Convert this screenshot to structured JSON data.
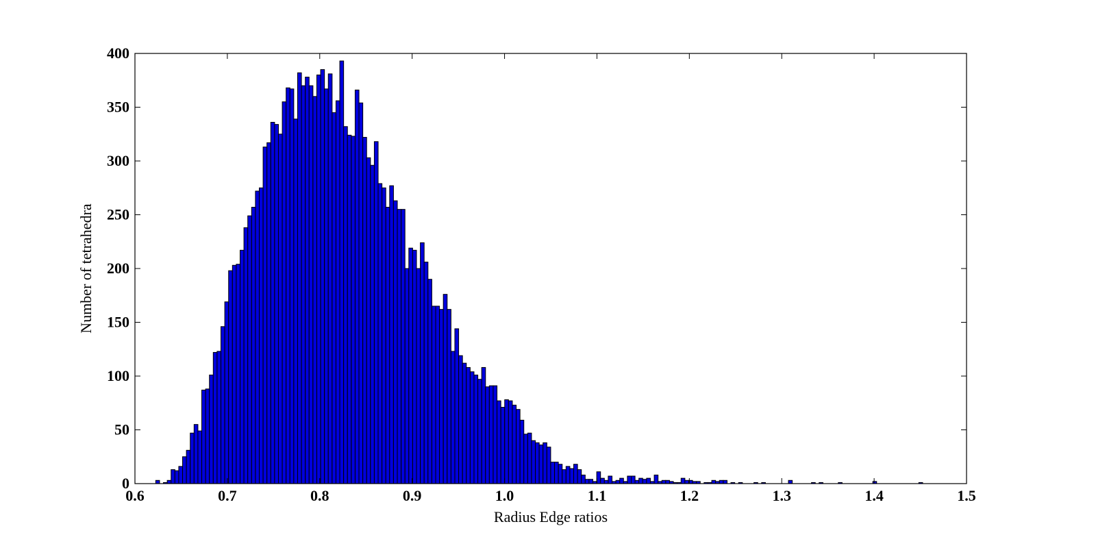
{
  "chart_data": {
    "type": "histogram",
    "x_label": "Radius Edge ratios",
    "y_label": "Number of tetrahedra",
    "color": "#0000dd",
    "edge_color": "#000000",
    "bins": [
      0.6225,
      0.62665,
      0.6308,
      0.63495,
      0.6391,
      0.64325,
      0.6474,
      0.65155,
      0.6557,
      0.65985,
      0.664,
      0.66815,
      0.6723,
      0.67645,
      0.6806,
      0.68475,
      0.6889,
      0.69305,
      0.6972,
      0.70135,
      0.7055,
      0.70965,
      0.7138,
      0.71795,
      0.7221,
      0.72625,
      0.7304,
      0.73455,
      0.7387,
      0.74285,
      0.747,
      0.75115,
      0.7553,
      0.75945,
      0.7636,
      0.76775,
      0.7719,
      0.77605,
      0.7802,
      0.78435,
      0.7885,
      0.79265,
      0.7968,
      0.80095,
      0.8051,
      0.80925,
      0.8134,
      0.81755,
      0.8217,
      0.82585,
      0.83,
      0.83415,
      0.8383,
      0.84245,
      0.8466,
      0.85075,
      0.8549,
      0.85905,
      0.8632,
      0.86735,
      0.8715,
      0.87565,
      0.8798,
      0.88395,
      0.8881,
      0.89225,
      0.8964,
      0.90055,
      0.9047,
      0.90885,
      0.913,
      0.91715,
      0.9213,
      0.92545,
      0.9296,
      0.93375,
      0.9379,
      0.94205,
      0.9462,
      0.95035,
      0.9545,
      0.95865,
      0.9628,
      0.96695,
      0.9711,
      0.97525,
      0.9794,
      0.98355,
      0.9877,
      0.99185,
      0.996,
      1.00015,
      1.0043,
      1.00845,
      1.0126,
      1.01675,
      1.0209,
      1.02505,
      1.0292,
      1.03335,
      1.0375,
      1.04165,
      1.0458,
      1.04995,
      1.0541,
      1.05825,
      1.0624,
      1.06655,
      1.0707,
      1.07485,
      1.079,
      1.08315,
      1.0873,
      1.09145,
      1.0956,
      1.09975,
      1.1039,
      1.10805,
      1.1122,
      1.11635,
      1.1205,
      1.12465,
      1.1288,
      1.13295,
      1.1371,
      1.14125,
      1.1454,
      1.14955,
      1.1537,
      1.15785,
      1.162,
      1.16615,
      1.1703,
      1.17445,
      1.1786,
      1.18275,
      1.1869,
      1.19105,
      1.1952,
      1.19935,
      1.2035,
      1.20765,
      1.2118,
      1.21595,
      1.2201,
      1.22425,
      1.2284,
      1.23255,
      1.2367,
      1.24085,
      1.245,
      1.24915,
      1.2533,
      1.25745,
      1.2616,
      1.26575,
      1.2699,
      1.27405,
      1.2782,
      1.28235,
      1.2865,
      1.29065,
      1.2948,
      1.29895,
      1.3031,
      1.30725,
      1.3114,
      1.31555,
      1.3197,
      1.32385,
      1.328,
      1.33215,
      1.3363,
      1.34045,
      1.3446,
      1.34875,
      1.3529,
      1.35705,
      1.3612,
      1.36535,
      1.3695,
      1.37365,
      1.3778,
      1.38195,
      1.3861,
      1.39025,
      1.3944,
      1.39855,
      1.4027,
      1.40685,
      1.411,
      1.41515,
      1.4193,
      1.42345,
      1.4276,
      1.43175,
      1.4359,
      1.44005,
      1.4442,
      1.44835,
      1.4525
    ],
    "values": [
      3,
      0,
      1,
      3,
      13,
      12,
      16,
      25,
      31,
      47,
      55,
      49,
      87,
      88,
      101,
      122,
      123,
      146,
      169,
      198,
      203,
      204,
      217,
      238,
      249,
      257,
      272,
      275,
      313,
      317,
      336,
      334,
      325,
      355,
      368,
      367,
      339,
      382,
      370,
      378,
      370,
      360,
      380,
      385,
      367,
      381,
      345,
      356,
      393,
      332,
      324,
      323,
      366,
      354,
      322,
      303,
      296,
      318,
      279,
      275,
      257,
      277,
      263,
      255,
      255,
      200,
      219,
      217,
      200,
      224,
      206,
      190,
      165,
      165,
      162,
      176,
      162,
      123,
      144,
      119,
      112,
      108,
      104,
      101,
      97,
      108,
      90,
      91,
      91,
      77,
      71,
      78,
      77,
      73,
      69,
      59,
      46,
      47,
      40,
      38,
      36,
      38,
      34,
      20,
      20,
      18,
      13,
      16,
      14,
      18,
      13,
      8,
      4,
      4,
      2,
      11,
      5,
      3,
      7,
      2,
      3,
      5,
      2,
      7,
      7,
      3,
      5,
      4,
      5,
      2,
      8,
      2,
      3,
      3,
      2,
      1,
      1,
      5,
      3,
      3,
      2,
      2,
      0,
      1,
      1,
      3,
      2,
      3,
      3,
      0,
      1,
      0,
      1,
      0,
      0,
      0,
      1,
      0,
      1,
      0,
      0,
      0,
      0,
      0,
      0,
      3,
      0,
      0,
      0,
      0,
      0,
      1,
      0,
      1,
      0,
      0,
      0,
      0,
      1,
      0,
      0,
      0,
      0,
      0,
      0,
      0,
      0,
      2,
      0,
      0,
      0,
      0,
      0,
      0,
      0,
      0,
      0,
      0,
      0,
      1
    ],
    "xlim": [
      0.6,
      1.5
    ],
    "xticks": [
      0.6,
      0.7,
      0.8,
      0.9,
      {
        "value": 1,
        "label": "1.0"
      },
      1.1,
      1.2,
      1.3,
      1.4,
      1.5
    ],
    "ylim": [
      0,
      400
    ],
    "yticks": [
      0,
      50,
      100,
      150,
      200,
      250,
      300,
      350,
      400
    ],
    "grid": false
  }
}
